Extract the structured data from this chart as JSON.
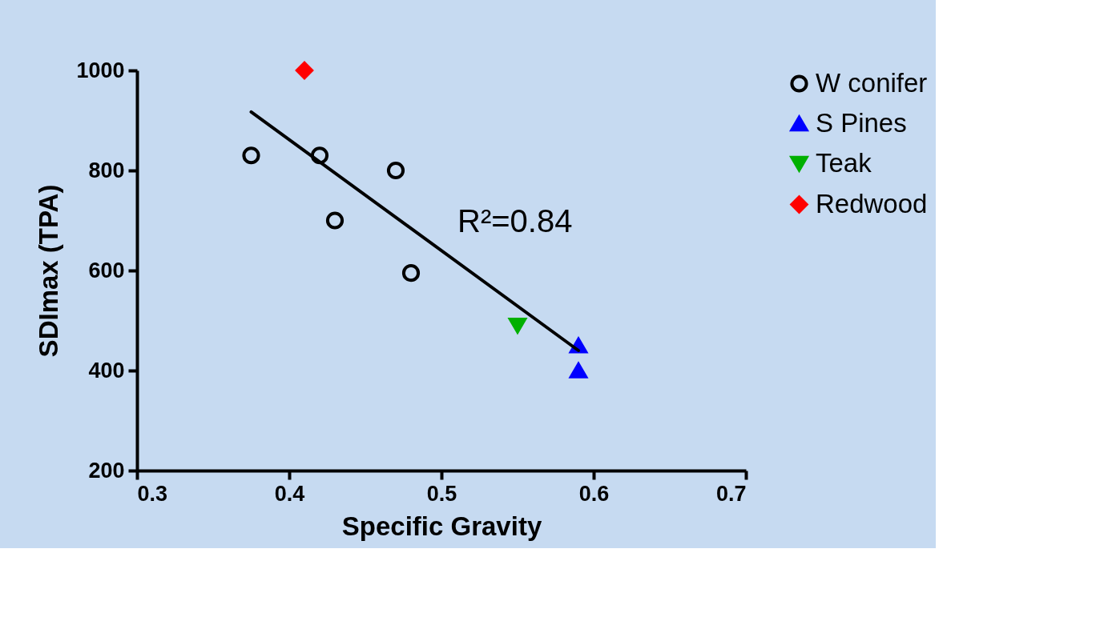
{
  "chart_data": {
    "type": "scatter",
    "xlabel": "Specific Gravity",
    "ylabel": "SDImax (TPA)",
    "xlim": [
      0.3,
      0.7
    ],
    "xticks": [
      0.3,
      0.4,
      0.5,
      0.6,
      0.7
    ],
    "ylim": [
      200,
      1000
    ],
    "yticks": [
      200,
      400,
      600,
      800,
      1000
    ],
    "grid": false,
    "legend": "top right",
    "annotations": [
      "R²=0.84"
    ],
    "series": [
      {
        "name": "W conifer",
        "marker": "circle",
        "color": "#000000",
        "x": [
          0.375,
          0.42,
          0.47,
          0.43,
          0.48
        ],
        "values": [
          830,
          830,
          800,
          700,
          595
        ]
      },
      {
        "name": "S Pines",
        "marker": "triangle",
        "color": "#0000ff",
        "x": [
          0.59,
          0.59
        ],
        "values": [
          450,
          400
        ]
      },
      {
        "name": "Teak",
        "marker": "triangle-down",
        "color": "#00b000",
        "x": [
          0.55
        ],
        "values": [
          490
        ]
      },
      {
        "name": "Redwood",
        "marker": "diamond",
        "color": "#ff0000",
        "x": [
          0.41
        ],
        "values": [
          1000
        ]
      },
      {
        "type": "line",
        "marker": "none",
        "line_style": "solid",
        "color": "#000000",
        "x": [
          0.375,
          0.59
        ],
        "values": [
          917,
          440
        ]
      }
    ]
  }
}
